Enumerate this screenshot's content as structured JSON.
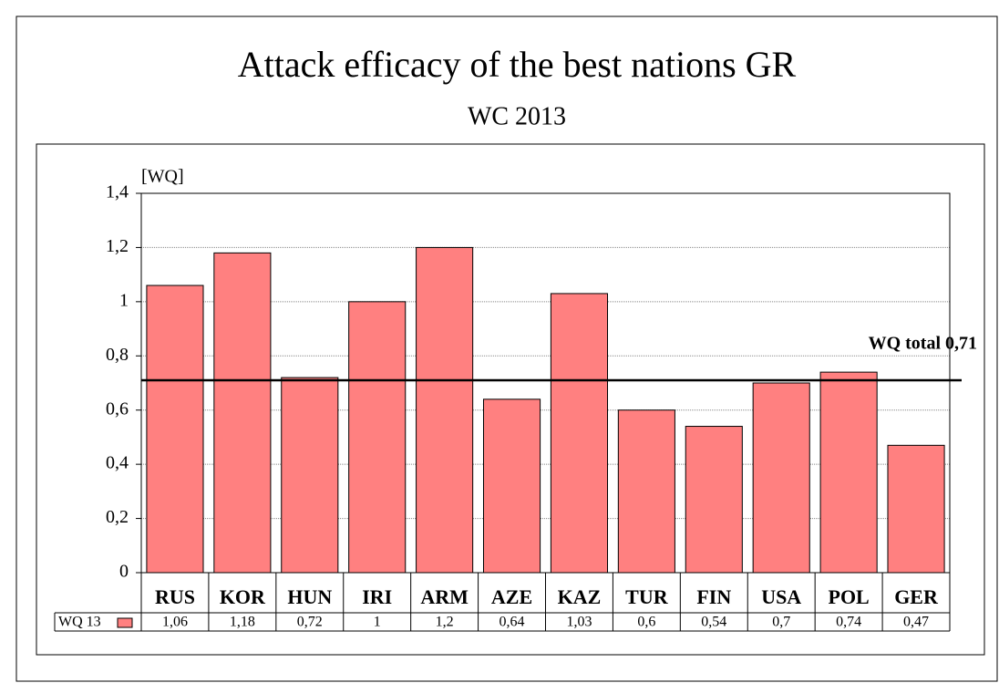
{
  "chart_data": {
    "type": "bar",
    "title": "Attack efficacy of the best nations GR",
    "subtitle": "WC 2013",
    "y_label": "[WQ]",
    "categories": [
      "RUS",
      "KOR",
      "HUN",
      "IRI",
      "ARM",
      "AZE",
      "KAZ",
      "TUR",
      "FIN",
      "USA",
      "POL",
      "GER"
    ],
    "series": [
      {
        "name": "WQ 13",
        "color": "#ff8080",
        "values": [
          1.06,
          1.18,
          0.72,
          1,
          1.2,
          0.64,
          1.03,
          0.6,
          0.54,
          0.7,
          0.74,
          0.47
        ],
        "value_labels": [
          "1,06",
          "1,18",
          "0,72",
          "1",
          "1,2",
          "0,64",
          "1,03",
          "0,6",
          "0,54",
          "0,7",
          "0,74",
          "0,47"
        ]
      }
    ],
    "ylim": [
      0,
      1.4
    ],
    "yticks": [
      0,
      {
        "value": 0.2,
        "label": "0,2"
      },
      {
        "value": 0.4,
        "label": "0,4"
      },
      {
        "value": 0.6,
        "label": "0,6"
      },
      {
        "value": 0.8,
        "label": "0,8"
      },
      1,
      {
        "value": 1.2,
        "label": "1,2"
      },
      {
        "value": 1.4,
        "label": "1,4"
      }
    ],
    "grid": true,
    "reference_line": {
      "value": 0.71,
      "label": "WQ total 0,71"
    }
  }
}
